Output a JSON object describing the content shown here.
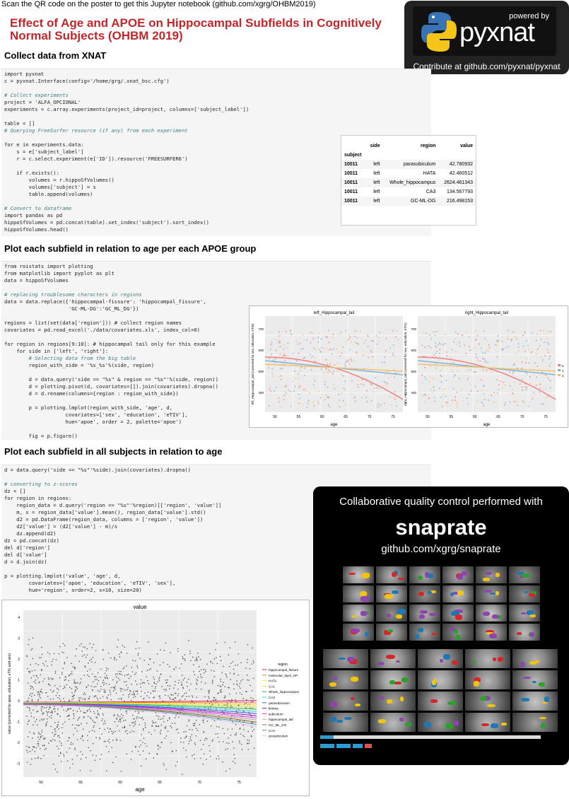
{
  "top_note": "Scan the QR code on the poster to get this Jupyter notebook (github.com/xgrg/OHBM2019)",
  "title": "Effect of Age and APOE on Hippocampal Subfields in Cognitively Normal Subjects (OHBM 2019)",
  "pyxnat": {
    "powered_by": "powered by",
    "logo_text": "pyxnat",
    "contribute": "Contribute at github.com/pyxnat/pyxnat",
    "accent": "#0c6ec5"
  },
  "sections": [
    {
      "heading": "Collect data from XNAT"
    },
    {
      "heading": "Plot each subfield in relation to age per each APOE group"
    },
    {
      "heading": "Plot each subfield in all subjects in relation to age"
    }
  ],
  "code1": [
    "import pyxnat",
    "c = pyxnat.Interface(config='/home/grg/.xnat_bsc.cfg')",
    "",
    "# Collect experiments",
    "project = 'ALFA_OPCIONAL'",
    "experiments = c.array.experiments(project_id=project, columns=['subject_label'])",
    "",
    "table = []",
    "# Querying FreeSurfer resource (if any) from each experiment",
    "",
    "for e in experiments.data:",
    "    s = e['subject_label']",
    "    r = c.select.experiment(e['ID']).resource('FREESURFER6')",
    "",
    "    if r.exists():",
    "        volumes = r.hippoSfVolumes()",
    "        volumes['subject'] = s",
    "        table.append(volumes)",
    "",
    "# Convert to dataframe",
    "import pandas as pd",
    "hippoSfVolumes = pd.concat(table).set_index('subject').sort_index()",
    "hippoSfVolumes.head()"
  ],
  "table": {
    "headers": [
      "side",
      "region",
      "value"
    ],
    "index_name": "subject",
    "rows": [
      [
        "10011",
        "left",
        "parasubiculum",
        "42.780932"
      ],
      [
        "10011",
        "left",
        "HATA",
        "42.460512"
      ],
      [
        "10011",
        "left",
        "Whole_hippocampus",
        "2624.461343"
      ],
      [
        "10011",
        "left",
        "CA3",
        "134.567793"
      ],
      [
        "10011",
        "left",
        "GC-ML-DG",
        "216.498153"
      ]
    ]
  },
  "code2": [
    "from roistats import plotting",
    "from matplotlib import pyplot as plt",
    "data = hippoSfVolumes",
    "",
    "# replacing troublesome characters in regions",
    "data = data.replace({'hippocampal-fissure': 'hippocampal_fissure',",
    "                     'GC-ML-DG':'GC_ML_DG'})",
    "",
    "regions = list(set(data['region'])) # collect region names",
    "covariates = pd.read_excel('./data/covariates.xls', index_col=0)",
    "",
    "for region in regions[9:10]: # hippocampal tail only for this example",
    "    for side in ['left', 'right']:",
    "        # Selecting data from the big table",
    "        region_with_side = '%s_%s'%(side, region)",
    "",
    "        d = data.query('side == \"%s\" & region == \"%s\"'%(side, region))",
    "        d = plotting.pivot(d, covariates=[]).join(covariates).dropna()",
    "        d = d.rename(columns={region : region_with_side})",
    "",
    "        p = plotting.lmplot(region_with_side, 'age', d,",
    "                    covariates=['sex', 'education', 'eTIV'],",
    "                    hue='apoe', order = 2, palette='apoe')",
    "",
    "        fig = p.figure()"
  ],
  "code3": [
    "d = data.query('side == \"%s\"'%side).join(covariates).dropna()",
    "",
    "# converting to z-scores",
    "dz = []",
    "for region in regions:",
    "    region_data = d.query('region == \"%s\"'%region)[['region', 'value']]",
    "    m, s = region_data['value'].mean(), region_data['value'].std()",
    "    d2 = pd.DataFrame(region_data, columns = ['region', 'value'])",
    "    d2['value'] = (d2['value'] - m)/s",
    "    dz.append(d2)",
    "dz = pd.concat(dz)",
    "del d['region']",
    "del d['value']",
    "d = d.join(dz)",
    "",
    "p = plotting.lmplot('value', 'age', d,",
    "        covariates=['apoe', 'education', 'eTIV', 'sex'],",
    "        hue='region', order=2, s=10, size=20)"
  ],
  "plot_pair": {
    "left_title": "left_Hippocampal_tail",
    "right_title": "right_Hippocampal_tail",
    "xlabel": "age",
    "left_ylabel": "left_Hippocampal_tail (corrected for sex, education, eTIV)",
    "right_ylabel": "right_Hippocampal_tail (corrected for sex, education, eTIV)",
    "x_ticks": [
      "50",
      "55",
      "60",
      "65",
      "70",
      "75"
    ],
    "y_ticks": [
      "700",
      "600",
      "500",
      "400"
    ],
    "legend_labels": [
      "0",
      "1",
      "2"
    ],
    "colors": [
      "#f08080",
      "#7fb3d5",
      "#f5c16c"
    ]
  },
  "plot_all": {
    "title": "value",
    "xlabel": "age",
    "ylabel": "value (corrected for apoe, education, eTIV and sex)",
    "x_ticks": [
      "50",
      "55",
      "60",
      "65",
      "70",
      "75"
    ],
    "y_ticks": [
      "4",
      "3",
      "2",
      "1",
      "0",
      "-1",
      "-2",
      "-3"
    ],
    "legend_title": "region",
    "legend": [
      "hippocampal_fissure",
      "molecular_layer_HP",
      "HATA",
      "CA1",
      "Whole_hippocampus",
      "CA3",
      "parasubiculum",
      "fimbria",
      "subiculum",
      "hippocampal_tail",
      "GC_ML_DG",
      "CA4",
      "presubiculum"
    ],
    "colors": [
      "#e6194b",
      "#f58231",
      "#ffe119",
      "#bfef45",
      "#3cb44b",
      "#42d4f4",
      "#4363d8",
      "#911eb4",
      "#f032e6",
      "#a9a9a9",
      "#9a6324",
      "#469990",
      "#dcbeff"
    ]
  },
  "snaprate": {
    "heading": "Collaborative quality control performed with",
    "name": "snaprate",
    "url": "github.com/xgrg/snaprate"
  }
}
